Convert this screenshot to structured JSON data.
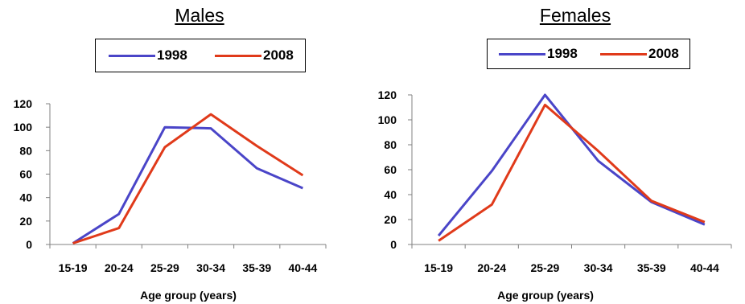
{
  "colors": {
    "series_1998": "#4a45c8",
    "series_2008": "#e03a1a",
    "axis": "#808080"
  },
  "chart_data": [
    {
      "type": "line",
      "title": "Males",
      "xlabel": "Age group (years)",
      "ylabel": "",
      "categories": [
        "15-19",
        "20-24",
        "25-29",
        "30-34",
        "35-39",
        "40-44"
      ],
      "ylim": [
        0,
        120
      ],
      "yticks": [
        0,
        20,
        40,
        60,
        80,
        100,
        120
      ],
      "grid": false,
      "legend_position": "top",
      "series": [
        {
          "name": "1998",
          "values": [
            1,
            26,
            100,
            99,
            65,
            48
          ]
        },
        {
          "name": "2008",
          "values": [
            1,
            14,
            83,
            111,
            84,
            59
          ]
        }
      ]
    },
    {
      "type": "line",
      "title": "Females",
      "xlabel": "Age group (years)",
      "ylabel": "",
      "categories": [
        "15-19",
        "20-24",
        "25-29",
        "30-34",
        "35-39",
        "40-44"
      ],
      "ylim": [
        0,
        120
      ],
      "yticks": [
        0,
        20,
        40,
        60,
        80,
        100,
        120
      ],
      "grid": false,
      "legend_position": "top",
      "series": [
        {
          "name": "1998",
          "values": [
            7,
            59,
            120,
            67,
            34,
            16
          ]
        },
        {
          "name": "2008",
          "values": [
            3,
            32,
            112,
            75,
            35,
            18
          ]
        }
      ]
    }
  ]
}
